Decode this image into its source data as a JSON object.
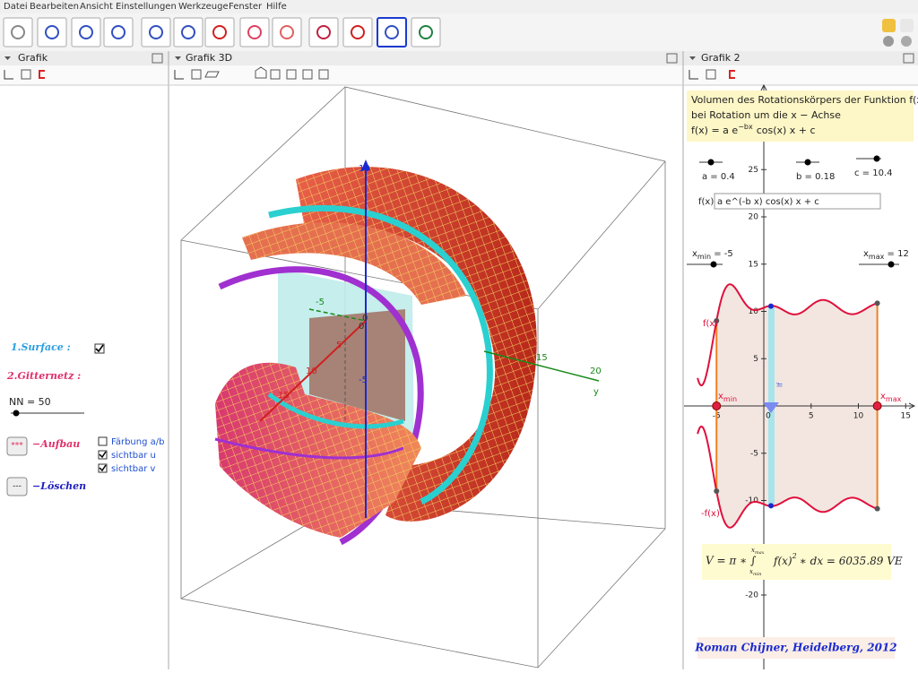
{
  "menu": [
    "Datei",
    "Bearbeiten",
    "Ansicht",
    "Einstellungen",
    "Werkzeuge",
    "Fenster",
    "Hilfe"
  ],
  "left": {
    "title": "Grafik",
    "surface": "1.Surface :",
    "surface_checked": true,
    "gitternetz": "2.Gitternetz :",
    "nn": "NN = 50",
    "aufbau_button": "***",
    "aufbau": "−Aufbau",
    "loeschen_button": "---",
    "loeschen": "−Löschen",
    "checkboxes": [
      {
        "label": "Färbung a/b",
        "checked": false
      },
      {
        "label": "sichtbar u",
        "checked": true
      },
      {
        "label": "sichtbar v",
        "checked": true
      }
    ]
  },
  "view3d": {
    "title": "Grafik 3D",
    "labels": [
      "-5",
      "0",
      "5",
      "10",
      "15",
      "20",
      "y",
      "0",
      "-5",
      "15",
      "10"
    ]
  },
  "graph2": {
    "title": "Grafik 2",
    "info": [
      "Volumen des Rotationskörpers der Funktion f(x)",
      "bei Rotation um die x − Achse"
    ],
    "formula": [
      "f(x) = a e",
      "−bx",
      "cos(x) x + c"
    ],
    "sliders": [
      {
        "label": "a = 0.4",
        "value": 0.4
      },
      {
        "label": "b = 0.18",
        "value": 0.18
      },
      {
        "label": "c = 10.4",
        "value": 10.4
      }
    ],
    "input": {
      "label": "f(x)=",
      "value": "a e^(-b x) cos(x) x + c"
    },
    "xmin": {
      "name": "x",
      "sub": "min",
      "text": " = -5",
      "value": -5
    },
    "xmax": {
      "name": "x",
      "sub": "max",
      "text": " = 12",
      "value": 12
    },
    "xticks": [
      -5,
      0,
      5,
      10,
      15
    ],
    "yticks": [
      25,
      20,
      15,
      10,
      5,
      -5,
      -10,
      -15,
      -20
    ],
    "curve_labels": [
      "f(x)",
      "-f(x)",
      "lf"
    ],
    "point_labels": [
      {
        "name": "x",
        "sub": "min"
      },
      {
        "name": "x",
        "sub": "max"
      }
    ],
    "volume": [
      "V = π ∗ ∫",
      "x",
      "max",
      "x",
      "min",
      "f(x)",
      "2",
      "∗ dx = 6035.89 VE"
    ],
    "author": "Roman Chijner, Heidelberg, 2012"
  }
}
